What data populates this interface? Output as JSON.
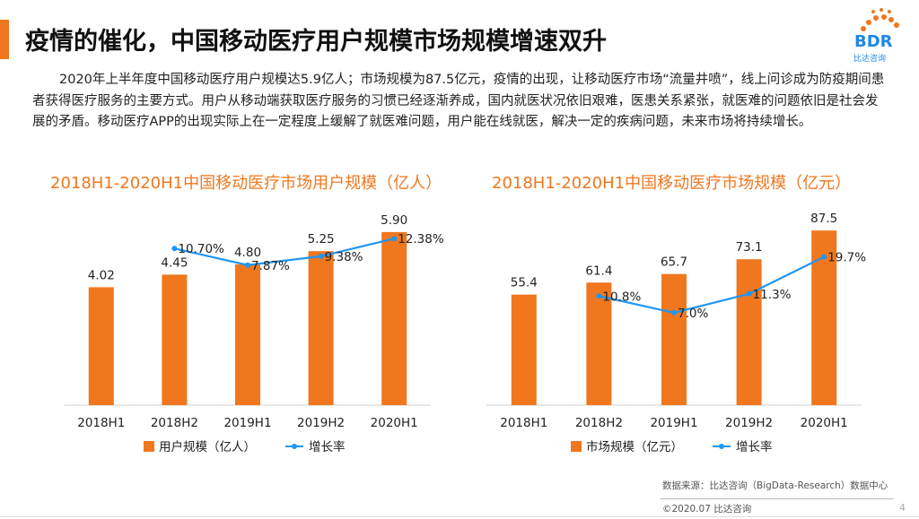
{
  "header": {
    "title": "疫情的催化，中国移动医疗用户规模市场规模增速双升"
  },
  "logo": {
    "text": "BDR",
    "sub": "比达咨询"
  },
  "paragraph": "2020年上半年度中国移动医疗用户规模达5.9亿人；市场规模为87.5亿元，疫情的出现，让移动医疗市场“流量井喷”，线上问诊成为防疫期间患者获得医疗服务的主要方式。用户从移动端获取医疗服务的习惯已经逐渐养成，国内就医状况依旧艰难，医患关系紧张，就医难的问题依旧是社会发展的矛盾。移动医疗APP的出现实际上在一定程度上缓解了就医难问题，用户能在线就医，解决一定的疾病问题，未来市场将持续增长。",
  "colors": {
    "accent": "#f0771e",
    "bar": "#f0771e",
    "line": "#2196f3"
  },
  "chart_data": [
    {
      "type": "bar",
      "title": "2018H1-2020H1中国移动医疗市场用户规模（亿人）",
      "categories": [
        "2018H1",
        "2018H2",
        "2019H1",
        "2019H2",
        "2020H1"
      ],
      "series": [
        {
          "name": "用户规模（亿人）",
          "kind": "bar",
          "values": [
            4.02,
            4.45,
            4.8,
            5.25,
            5.9
          ],
          "labels": [
            "4.02",
            "4.45",
            "4.80",
            "5.25",
            "5.90"
          ]
        },
        {
          "name": "增长率",
          "kind": "line",
          "values": [
            null,
            10.7,
            7.87,
            9.38,
            12.38
          ],
          "labels": [
            "",
            "10.70%",
            "7.87%",
            "9.38%",
            "12.38%"
          ]
        }
      ],
      "ylim": [
        0,
        6.6
      ],
      "y2lim": [
        -16,
        17
      ]
    },
    {
      "type": "bar",
      "title": "2018H1-2020H1中国移动医疗市场规模（亿元）",
      "categories": [
        "2018H1",
        "2018H2",
        "2019H1",
        "2019H2",
        "2020H1"
      ],
      "series": [
        {
          "name": "市场规模（亿元）",
          "kind": "bar",
          "values": [
            55.4,
            61.4,
            65.7,
            73.1,
            87.5
          ],
          "labels": [
            "55.4",
            "61.4",
            "65.7",
            "73.1",
            "87.5"
          ]
        },
        {
          "name": "增长率",
          "kind": "line",
          "values": [
            null,
            10.8,
            7.0,
            11.3,
            19.7
          ],
          "labels": [
            "",
            "10.8%",
            "7.0%",
            "11.3%",
            "19.7%"
          ]
        }
      ],
      "ylim": [
        0,
        97
      ],
      "y2lim": [
        -14,
        30
      ]
    }
  ],
  "footer": {
    "source": "数据来源：比达咨询（BigData-Research）数据中心",
    "copyright": "©2020.07 比达咨询",
    "page": "4"
  }
}
